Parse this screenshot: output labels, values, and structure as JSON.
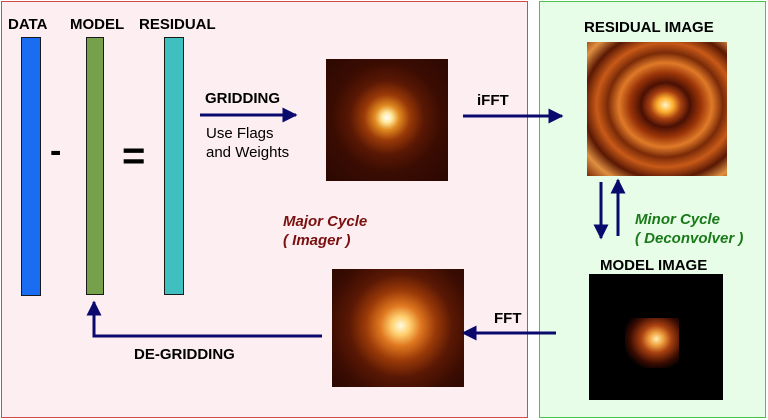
{
  "colors": {
    "major_cycle_panel_bg": "#fdeff1",
    "major_cycle_panel_border": "#d84a4a",
    "minor_cycle_panel_bg": "#e8fde8",
    "minor_cycle_panel_border": "#4ac44a",
    "data_bar": "#1a6cf0",
    "model_bar": "#77a04a",
    "residual_bar": "#3fbfbf",
    "arrow": "#0a0a6e",
    "major_cycle_text": "#7a1010",
    "minor_cycle_text": "#1a7a1a"
  },
  "columns": {
    "data_label": "DATA",
    "model_label": "MODEL",
    "residual_label": "RESIDUAL",
    "minus_sign": "-",
    "equals_sign": "="
  },
  "gridding": {
    "label": "GRIDDING",
    "note_line1": "Use Flags",
    "note_line2": "and Weights"
  },
  "ifft_label": "iFFT",
  "fft_label": "FFT",
  "degridding_label": "DE-GRIDDING",
  "residual_image_label": "RESIDUAL IMAGE",
  "model_image_label": "MODEL IMAGE",
  "major_cycle": {
    "line1": "Major Cycle",
    "line2": "( Imager )"
  },
  "minor_cycle": {
    "line1": "Minor Cycle",
    "line2": "( Deconvolver )"
  }
}
